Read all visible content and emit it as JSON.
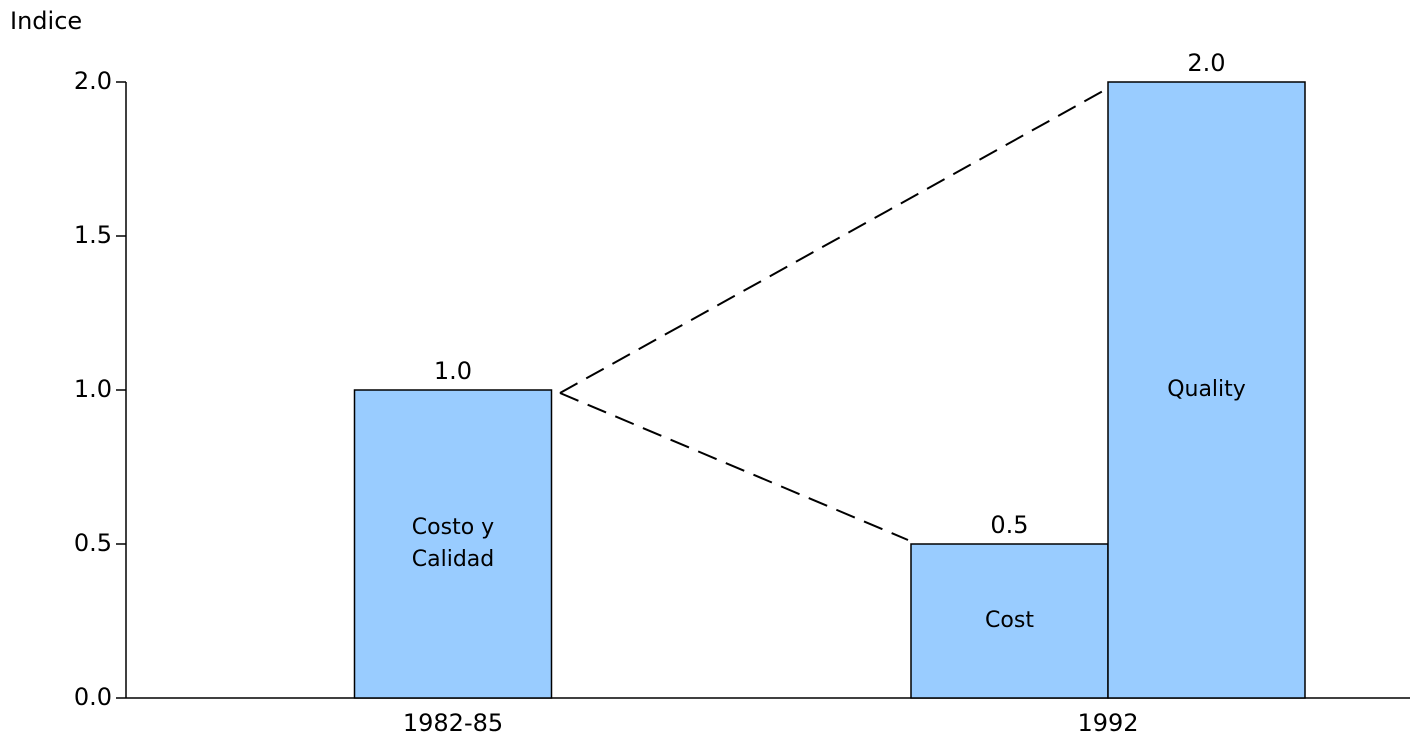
{
  "chart_data": {
    "type": "bar",
    "y_label": "Indice",
    "categories": [
      "1982-85",
      "1992"
    ],
    "series": [
      {
        "name": "Costo y Calidad",
        "color": "#99ccff",
        "values": [
          1.0,
          null
        ],
        "value_labels": [
          "1.0",
          null
        ]
      },
      {
        "name": "Cost",
        "color": "#99ccff",
        "values": [
          null,
          0.5
        ],
        "value_labels": [
          null,
          "0.5"
        ]
      },
      {
        "name": "Quality",
        "color": "#99ccff",
        "values": [
          null,
          2.0
        ],
        "value_labels": [
          null,
          "2.0"
        ]
      }
    ],
    "ylim": [
      0,
      2
    ],
    "yticks": [
      {
        "value": 0,
        "label": "0.0"
      },
      0.5,
      {
        "value": 1,
        "label": "1.0"
      },
      1.5,
      {
        "value": 2,
        "label": "2.0"
      }
    ],
    "grid": false
  }
}
